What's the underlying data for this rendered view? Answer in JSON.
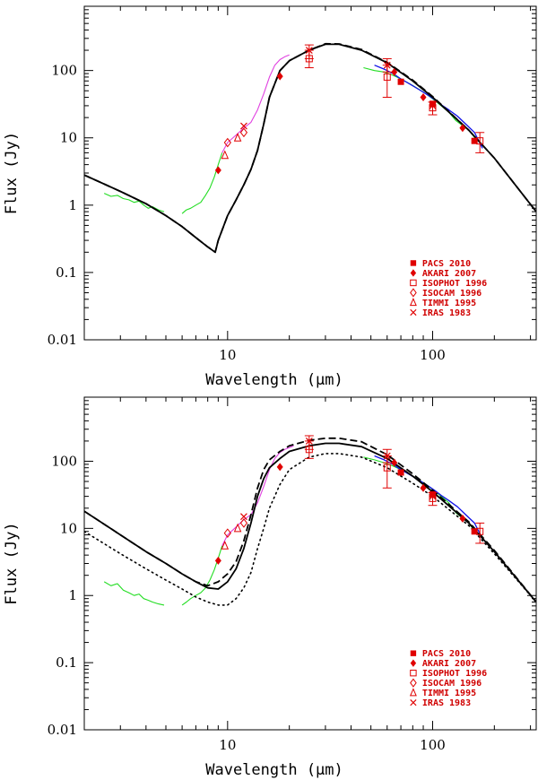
{
  "chart_data": [
    {
      "type": "line",
      "panel": "top",
      "xlabel": "Wavelength (μm)",
      "ylabel": "Flux (Jy)",
      "xscale": "log",
      "yscale": "log",
      "xlim": [
        2,
        320
      ],
      "ylim": [
        0.01,
        900
      ],
      "xticks": [
        {
          "value": 10,
          "label": "10"
        },
        {
          "value": 100,
          "label": "100"
        }
      ],
      "yticks": [
        {
          "value": 0.01,
          "label": "0.01"
        },
        {
          "value": 0.1,
          "label": "0.1"
        },
        {
          "value": 1,
          "label": "1"
        },
        {
          "value": 10,
          "label": "10"
        },
        {
          "value": 100,
          "label": "100"
        }
      ],
      "legend_position": "bottom-right",
      "legend": [
        {
          "marker": "filled-square",
          "label": "PACS 2010"
        },
        {
          "marker": "filled-diamond",
          "label": "AKARI 2007"
        },
        {
          "marker": "open-square",
          "label": "ISOPHOT 1996"
        },
        {
          "marker": "open-diamond",
          "label": "ISOCAM 1996"
        },
        {
          "marker": "open-triangle",
          "label": "TIMMI 1995"
        },
        {
          "marker": "cross",
          "label": "IRAS 1983"
        }
      ],
      "series": [
        {
          "name": "spectrum-green-short",
          "style": "green",
          "x": [
            2.5,
            2.7,
            2.9,
            3.1,
            3.3,
            3.5,
            3.7,
            3.9,
            4.1,
            4.3,
            4.6,
            4.9
          ],
          "y": [
            1.5,
            1.35,
            1.4,
            1.25,
            1.2,
            1.1,
            1.15,
            1.0,
            0.9,
            0.95,
            0.85,
            0.8
          ]
        },
        {
          "name": "spectrum-green-mid",
          "style": "green",
          "x": [
            6.0,
            6.3,
            6.6,
            7.0,
            7.4,
            7.8,
            8.2,
            8.6,
            9.0,
            9.4
          ],
          "y": [
            0.75,
            0.85,
            0.9,
            1.0,
            1.1,
            1.4,
            1.8,
            2.6,
            4.0,
            6.0
          ]
        },
        {
          "name": "spectrum-magenta",
          "style": "magenta",
          "x": [
            9.4,
            10,
            11,
            12,
            13,
            14,
            15,
            16,
            17,
            18,
            19,
            20
          ],
          "y": [
            6.0,
            8.5,
            11,
            14,
            17,
            26,
            45,
            80,
            120,
            145,
            160,
            170
          ]
        },
        {
          "name": "spectrum-green-long",
          "style": "green",
          "x": [
            46,
            52,
            58,
            64,
            70,
            80,
            90,
            100,
            110,
            120,
            130,
            150,
            165
          ],
          "y": [
            110,
            100,
            95,
            85,
            75,
            60,
            48,
            38,
            30,
            24,
            18,
            13,
            9
          ]
        },
        {
          "name": "spectrum-blue",
          "style": "blue",
          "x": [
            52,
            58,
            64,
            70,
            78,
            86,
            94,
            102,
            110,
            120,
            132,
            145,
            160,
            175
          ],
          "y": [
            120,
            105,
            90,
            75,
            62,
            52,
            44,
            37,
            31,
            26,
            21,
            16,
            12,
            7
          ]
        },
        {
          "name": "model-solid",
          "style": "solid",
          "x": [
            2,
            3,
            4,
            5,
            6,
            7,
            8,
            8.7,
            9,
            10,
            11,
            12,
            13,
            14,
            15,
            16,
            18,
            20,
            25,
            30,
            35,
            45,
            60,
            80,
            100,
            150,
            200,
            320
          ],
          "y": [
            2.8,
            1.6,
            1.05,
            0.7,
            0.48,
            0.33,
            0.24,
            0.2,
            0.3,
            0.7,
            1.2,
            2.0,
            3.4,
            6.5,
            16,
            40,
            100,
            140,
            200,
            245,
            245,
            200,
            130,
            70,
            40,
            13,
            5,
            0.8
          ]
        },
        {
          "name": "model-dashed",
          "style": "dashed",
          "x": [
            2,
            3,
            4,
            5,
            6,
            7,
            8,
            8.7,
            9,
            10,
            11,
            12,
            13,
            14,
            15,
            16,
            18,
            20,
            25,
            30,
            35,
            45,
            60,
            80,
            100,
            150,
            200,
            320
          ],
          "y": [
            2.8,
            1.6,
            1.05,
            0.7,
            0.48,
            0.33,
            0.24,
            0.2,
            0.3,
            0.7,
            1.2,
            2.0,
            3.4,
            6.5,
            16,
            40,
            100,
            140,
            200,
            250,
            248,
            205,
            132,
            72,
            41,
            13,
            5,
            0.8
          ]
        }
      ],
      "points": [
        {
          "instrument": "PACS 2010",
          "marker": "filled-square",
          "x": 70,
          "y": 68
        },
        {
          "instrument": "PACS 2010",
          "marker": "filled-square",
          "x": 100,
          "y": 32
        },
        {
          "instrument": "PACS 2010",
          "marker": "filled-square",
          "x": 160,
          "y": 9
        },
        {
          "instrument": "AKARI 2007",
          "marker": "filled-diamond",
          "x": 9,
          "y": 3.3
        },
        {
          "instrument": "AKARI 2007",
          "marker": "filled-diamond",
          "x": 18,
          "y": 82
        },
        {
          "instrument": "AKARI 2007",
          "marker": "filled-diamond",
          "x": 65,
          "y": 95
        },
        {
          "instrument": "AKARI 2007",
          "marker": "filled-diamond",
          "x": 90,
          "y": 40
        },
        {
          "instrument": "AKARI 2007",
          "marker": "filled-diamond",
          "x": 140,
          "y": 14
        },
        {
          "instrument": "ISOPHOT 1996",
          "marker": "open-square",
          "x": 25,
          "y": 150,
          "err": [
            110,
            200
          ]
        },
        {
          "instrument": "ISOPHOT 1996",
          "marker": "open-square",
          "x": 60,
          "y": 80,
          "err": [
            40,
            120
          ]
        },
        {
          "instrument": "ISOPHOT 1996",
          "marker": "open-square",
          "x": 100,
          "y": 28,
          "err": [
            22,
            34
          ]
        },
        {
          "instrument": "ISOPHOT 1996",
          "marker": "open-square",
          "x": 170,
          "y": 9,
          "err": [
            6,
            12
          ]
        },
        {
          "instrument": "ISOCAM 1996",
          "marker": "open-diamond",
          "x": 10,
          "y": 8.5
        },
        {
          "instrument": "ISOCAM 1996",
          "marker": "open-diamond",
          "x": 12,
          "y": 12
        },
        {
          "instrument": "TIMMI 1995",
          "marker": "open-triangle",
          "x": 9.7,
          "y": 5.5
        },
        {
          "instrument": "TIMMI 1995",
          "marker": "open-triangle",
          "x": 11.2,
          "y": 10
        },
        {
          "instrument": "IRAS 1983",
          "marker": "cross",
          "x": 12,
          "y": 15
        },
        {
          "instrument": "IRAS 1983",
          "marker": "cross",
          "x": 25,
          "y": 200,
          "err": [
            150,
            240
          ]
        },
        {
          "instrument": "IRAS 1983",
          "marker": "cross",
          "x": 60,
          "y": 120,
          "err": [
            95,
            150
          ]
        },
        {
          "instrument": "IRAS 1983",
          "marker": "cross",
          "x": 100,
          "y": 30
        }
      ]
    },
    {
      "type": "line",
      "panel": "bottom",
      "xlabel": "Wavelength (μm)",
      "ylabel": "Flux (Jy)",
      "xscale": "log",
      "yscale": "log",
      "xlim": [
        2,
        320
      ],
      "ylim": [
        0.01,
        900
      ],
      "xticks": [
        {
          "value": 10,
          "label": "10"
        },
        {
          "value": 100,
          "label": "100"
        }
      ],
      "yticks": [
        {
          "value": 0.01,
          "label": "0.01"
        },
        {
          "value": 0.1,
          "label": "0.1"
        },
        {
          "value": 1,
          "label": "1"
        },
        {
          "value": 10,
          "label": "10"
        },
        {
          "value": 100,
          "label": "100"
        }
      ],
      "legend_position": "bottom-right",
      "legend": [
        {
          "marker": "filled-square",
          "label": "PACS 2010"
        },
        {
          "marker": "filled-diamond",
          "label": "AKARI 2007"
        },
        {
          "marker": "open-square",
          "label": "ISOPHOT 1996"
        },
        {
          "marker": "open-diamond",
          "label": "ISOCAM 1996"
        },
        {
          "marker": "open-triangle",
          "label": "TIMMI 1995"
        },
        {
          "marker": "cross",
          "label": "IRAS 1983"
        }
      ],
      "series": [
        {
          "name": "spectrum-green-short",
          "style": "green",
          "x": [
            2.5,
            2.7,
            2.9,
            3.1,
            3.3,
            3.5,
            3.7,
            3.9,
            4.1,
            4.3,
            4.6,
            4.9
          ],
          "y": [
            1.6,
            1.4,
            1.5,
            1.2,
            1.1,
            1.0,
            1.05,
            0.9,
            0.85,
            0.8,
            0.75,
            0.72
          ]
        },
        {
          "name": "spectrum-green-mid",
          "style": "green",
          "x": [
            6.0,
            6.3,
            6.6,
            7.0,
            7.4,
            7.8,
            8.2,
            8.6,
            9.0,
            9.4
          ],
          "y": [
            0.72,
            0.8,
            0.9,
            1.0,
            1.1,
            1.3,
            1.7,
            2.4,
            3.6,
            5.5
          ]
        },
        {
          "name": "spectrum-magenta",
          "style": "magenta",
          "x": [
            9.4,
            10,
            11,
            12,
            13,
            14,
            15,
            16,
            17,
            18,
            19,
            20,
            21
          ],
          "y": [
            5.5,
            8.0,
            10.5,
            13.5,
            16,
            24,
            42,
            75,
            110,
            135,
            150,
            160,
            170
          ]
        },
        {
          "name": "spectrum-green-long",
          "style": "green",
          "x": [
            46,
            52,
            58,
            64,
            70,
            80,
            90,
            100,
            110,
            120,
            130,
            150,
            165
          ],
          "y": [
            115,
            105,
            95,
            85,
            75,
            60,
            48,
            38,
            30,
            24,
            17,
            12,
            8
          ]
        },
        {
          "name": "spectrum-blue",
          "style": "blue",
          "x": [
            52,
            58,
            64,
            70,
            78,
            86,
            94,
            102,
            110,
            120,
            132,
            145,
            160,
            175
          ],
          "y": [
            120,
            105,
            90,
            75,
            62,
            52,
            44,
            37,
            31,
            26,
            21,
            16,
            12,
            7
          ]
        },
        {
          "name": "model-solid",
          "style": "solid",
          "x": [
            2,
            3,
            4,
            5,
            6,
            7,
            8,
            9,
            10,
            11,
            12,
            13,
            14,
            15,
            16,
            18,
            20,
            25,
            30,
            35,
            45,
            60,
            80,
            100,
            150,
            200,
            320
          ],
          "y": [
            18,
            8,
            4.5,
            3.0,
            2.1,
            1.6,
            1.3,
            1.25,
            1.6,
            2.5,
            5,
            12,
            30,
            55,
            80,
            110,
            140,
            170,
            185,
            185,
            165,
            110,
            60,
            35,
            12,
            4.5,
            0.8
          ]
        },
        {
          "name": "model-dashed",
          "style": "dashed",
          "x": [
            2,
            3,
            4,
            5,
            6,
            7,
            8,
            9,
            10,
            11,
            12,
            13,
            14,
            15,
            16,
            18,
            20,
            25,
            30,
            35,
            45,
            60,
            80,
            100,
            150,
            200,
            320
          ],
          "y": [
            18,
            8,
            4.5,
            3.0,
            2.1,
            1.6,
            1.4,
            1.6,
            2.1,
            3.2,
            6.5,
            16,
            40,
            75,
            105,
            140,
            170,
            205,
            220,
            220,
            195,
            125,
            65,
            37,
            12.5,
            4.7,
            0.8
          ]
        },
        {
          "name": "model-dotted",
          "style": "dotted",
          "x": [
            2,
            3,
            4,
            5,
            6,
            7,
            8,
            9,
            10,
            11,
            12,
            13,
            14,
            15,
            16,
            18,
            20,
            25,
            30,
            35,
            45,
            60,
            80,
            100,
            150,
            200,
            320
          ],
          "y": [
            9,
            4.2,
            2.5,
            1.7,
            1.25,
            0.95,
            0.8,
            0.72,
            0.72,
            0.9,
            1.3,
            2.2,
            5,
            10,
            20,
            45,
            75,
            115,
            130,
            130,
            115,
            80,
            47,
            30,
            11,
            4.2,
            0.8
          ]
        }
      ],
      "points": [
        {
          "instrument": "PACS 2010",
          "marker": "filled-square",
          "x": 70,
          "y": 68
        },
        {
          "instrument": "PACS 2010",
          "marker": "filled-square",
          "x": 100,
          "y": 32
        },
        {
          "instrument": "PACS 2010",
          "marker": "filled-square",
          "x": 160,
          "y": 9
        },
        {
          "instrument": "AKARI 2007",
          "marker": "filled-diamond",
          "x": 9,
          "y": 3.3
        },
        {
          "instrument": "AKARI 2007",
          "marker": "filled-diamond",
          "x": 18,
          "y": 82
        },
        {
          "instrument": "AKARI 2007",
          "marker": "filled-diamond",
          "x": 65,
          "y": 95
        },
        {
          "instrument": "AKARI 2007",
          "marker": "filled-diamond",
          "x": 90,
          "y": 40
        },
        {
          "instrument": "AKARI 2007",
          "marker": "filled-diamond",
          "x": 140,
          "y": 14
        },
        {
          "instrument": "ISOPHOT 1996",
          "marker": "open-square",
          "x": 25,
          "y": 150,
          "err": [
            110,
            200
          ]
        },
        {
          "instrument": "ISOPHOT 1996",
          "marker": "open-square",
          "x": 60,
          "y": 80,
          "err": [
            40,
            120
          ]
        },
        {
          "instrument": "ISOPHOT 1996",
          "marker": "open-square",
          "x": 100,
          "y": 28,
          "err": [
            22,
            34
          ]
        },
        {
          "instrument": "ISOPHOT 1996",
          "marker": "open-square",
          "x": 170,
          "y": 9,
          "err": [
            6,
            12
          ]
        },
        {
          "instrument": "ISOCAM 1996",
          "marker": "open-diamond",
          "x": 10,
          "y": 8.5
        },
        {
          "instrument": "ISOCAM 1996",
          "marker": "open-diamond",
          "x": 12,
          "y": 12
        },
        {
          "instrument": "TIMMI 1995",
          "marker": "open-triangle",
          "x": 9.7,
          "y": 5.5
        },
        {
          "instrument": "TIMMI 1995",
          "marker": "open-triangle",
          "x": 11.2,
          "y": 10
        },
        {
          "instrument": "IRAS 1983",
          "marker": "cross",
          "x": 12,
          "y": 15
        },
        {
          "instrument": "IRAS 1983",
          "marker": "cross",
          "x": 25,
          "y": 200,
          "err": [
            150,
            240
          ]
        },
        {
          "instrument": "IRAS 1983",
          "marker": "cross",
          "x": 60,
          "y": 120,
          "err": [
            95,
            150
          ]
        },
        {
          "instrument": "IRAS 1983",
          "marker": "cross",
          "x": 100,
          "y": 30
        }
      ]
    }
  ],
  "colors": {
    "axis": "#000000",
    "data_red": "#e00000",
    "green": "#22dd22",
    "magenta": "#e040e0",
    "blue": "#1010e8",
    "model": "#000000"
  }
}
